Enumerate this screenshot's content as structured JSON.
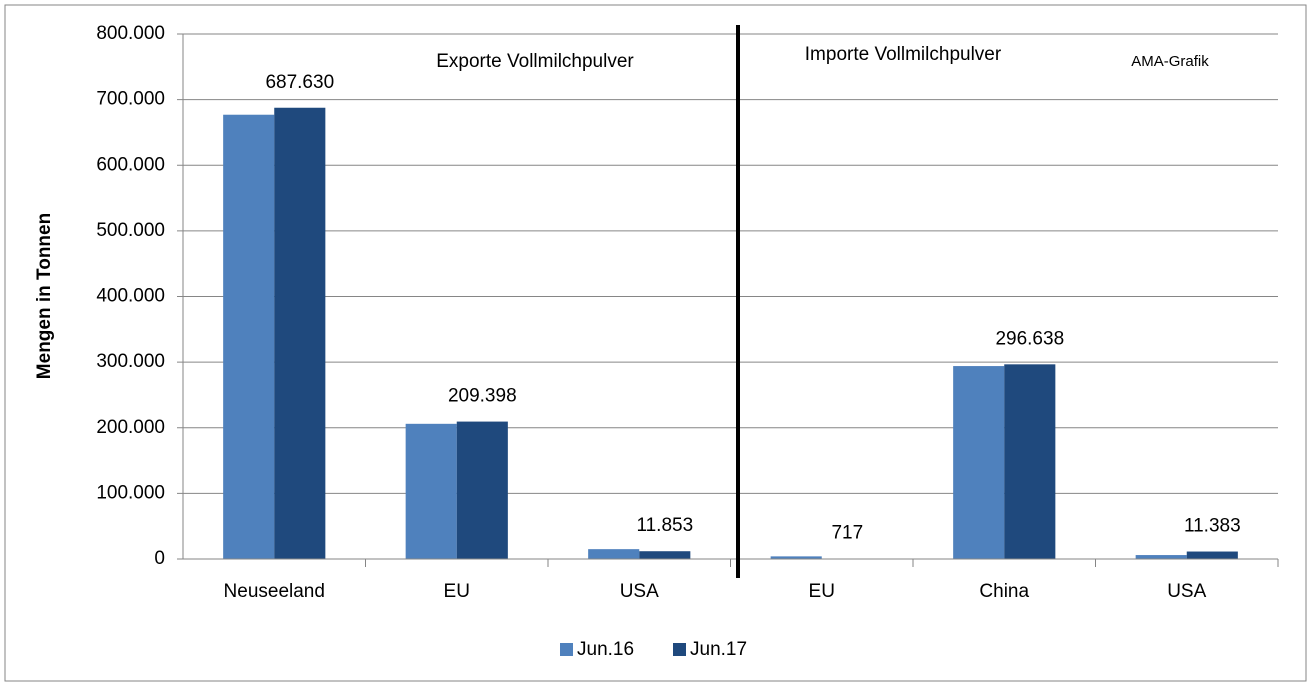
{
  "chart_data": {
    "type": "bar",
    "y_label": "Mengen in Tonnen",
    "annotations": [
      "Exporte Vollmilchpulver",
      "Importe Vollmilchpulver",
      "AMA-Grafik"
    ],
    "categories": [
      "Neuseeland",
      "EU",
      "USA",
      "EU",
      "China",
      "USA"
    ],
    "series": [
      {
        "name": "Jun.16",
        "color": "#4f81bd",
        "values": [
          677000,
          206000,
          15000,
          4000,
          294000,
          6000
        ]
      },
      {
        "name": "Jun.17",
        "color": "#1f497d",
        "values": [
          687630,
          209398,
          11853,
          717,
          296638,
          11383
        ],
        "value_labels": [
          "687.630",
          "209.398",
          "11.853",
          "717",
          "296.638",
          "11.383"
        ]
      }
    ],
    "ylim": [
      0,
      800000
    ],
    "yticks": [
      0,
      {
        "value": 100000,
        "label": "100.000"
      },
      {
        "value": 200000,
        "label": "200.000"
      },
      {
        "value": 300000,
        "label": "300.000"
      },
      {
        "value": 400000,
        "label": "400.000"
      },
      {
        "value": 500000,
        "label": "500.000"
      },
      {
        "value": 600000,
        "label": "600.000"
      },
      {
        "value": 700000,
        "label": "700.000"
      },
      {
        "value": 800000,
        "label": "800.000"
      }
    ],
    "grid": true,
    "legend": "bottom"
  }
}
